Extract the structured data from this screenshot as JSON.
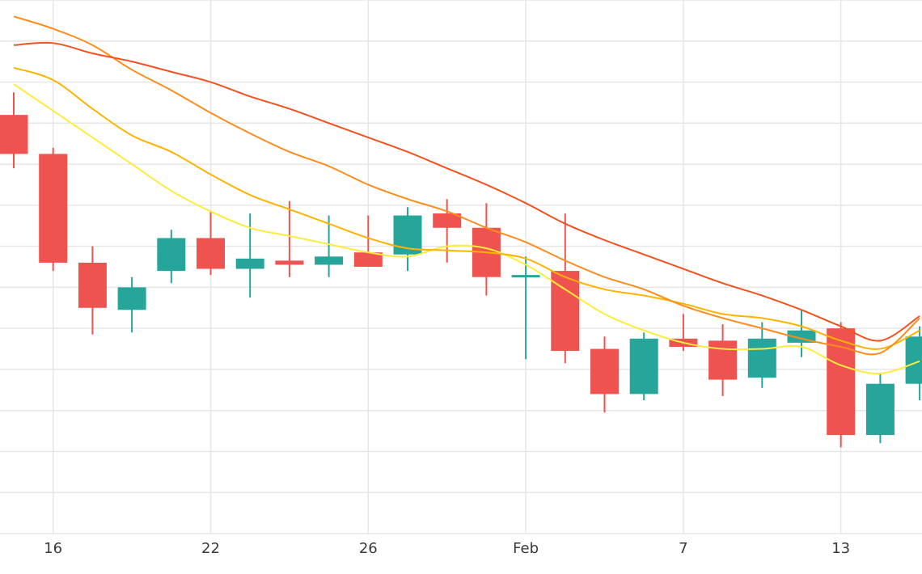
{
  "chart_data": {
    "type": "candlestick",
    "x_axis": {
      "labels": [
        {
          "label": "16",
          "index": 1
        },
        {
          "label": "22",
          "index": 5
        },
        {
          "label": "26",
          "index": 9
        },
        {
          "label": "Feb",
          "index": 13
        },
        {
          "label": "7",
          "index": 17
        },
        {
          "label": "13",
          "index": 21
        }
      ]
    },
    "y_range": [
      0,
      13
    ],
    "grid": true,
    "colors": {
      "up": "#26a69a",
      "down": "#ef5350",
      "ma_colors": [
        "#ffeb3b",
        "#ffb300",
        "#ff8c1a",
        "#f4511e"
      ]
    },
    "candles": [
      {
        "open": 10.2,
        "close": 9.25,
        "high": 10.75,
        "low": 8.9
      },
      {
        "open": 9.25,
        "close": 6.6,
        "high": 9.4,
        "low": 6.4
      },
      {
        "open": 6.6,
        "close": 5.5,
        "high": 7.0,
        "low": 4.85
      },
      {
        "open": 5.45,
        "close": 6.0,
        "high": 6.25,
        "low": 4.9
      },
      {
        "open": 6.4,
        "close": 7.2,
        "high": 7.4,
        "low": 6.1
      },
      {
        "open": 7.2,
        "close": 6.45,
        "high": 7.85,
        "low": 6.3
      },
      {
        "open": 6.45,
        "close": 6.7,
        "high": 7.8,
        "low": 5.75
      },
      {
        "open": 6.65,
        "close": 6.55,
        "high": 8.1,
        "low": 6.25
      },
      {
        "open": 6.55,
        "close": 6.75,
        "high": 7.75,
        "low": 6.25
      },
      {
        "open": 6.85,
        "close": 6.5,
        "high": 7.75,
        "low": 6.5
      },
      {
        "open": 6.8,
        "close": 7.75,
        "high": 7.95,
        "low": 6.4
      },
      {
        "open": 7.8,
        "close": 7.45,
        "high": 8.15,
        "low": 6.6
      },
      {
        "open": 7.45,
        "close": 6.25,
        "high": 8.05,
        "low": 5.8
      },
      {
        "open": 6.25,
        "close": 6.3,
        "high": 6.75,
        "low": 4.25
      },
      {
        "open": 6.4,
        "close": 4.45,
        "high": 7.8,
        "low": 4.15
      },
      {
        "open": 4.5,
        "close": 3.4,
        "high": 4.8,
        "low": 2.95
      },
      {
        "open": 3.4,
        "close": 4.75,
        "high": 4.9,
        "low": 3.25
      },
      {
        "open": 4.75,
        "close": 4.55,
        "high": 5.35,
        "low": 4.45
      },
      {
        "open": 4.7,
        "close": 3.75,
        "high": 5.1,
        "low": 3.35
      },
      {
        "open": 3.8,
        "close": 4.75,
        "high": 5.15,
        "low": 3.55
      },
      {
        "open": 4.65,
        "close": 4.95,
        "high": 5.45,
        "low": 4.3
      },
      {
        "open": 5.0,
        "close": 2.4,
        "high": 5.15,
        "low": 2.1
      },
      {
        "open": 2.4,
        "close": 3.65,
        "high": 3.9,
        "low": 2.2
      },
      {
        "open": 3.65,
        "close": 4.8,
        "high": 5.05,
        "low": 3.25
      }
    ],
    "moving_averages": [
      {
        "values": [
          10.95,
          10.3,
          9.65,
          9.0,
          8.35,
          7.85,
          7.45,
          7.25,
          7.05,
          6.85,
          6.75,
          7.0,
          6.95,
          6.55,
          5.95,
          5.35,
          4.95,
          4.65,
          4.5,
          4.5,
          4.55,
          4.1,
          3.9,
          4.2
        ]
      },
      {
        "values": [
          11.35,
          11.05,
          10.35,
          9.7,
          9.3,
          8.75,
          8.25,
          7.9,
          7.55,
          7.2,
          6.95,
          6.9,
          6.85,
          6.7,
          6.25,
          5.95,
          5.8,
          5.6,
          5.35,
          5.25,
          5.05,
          4.7,
          4.5,
          4.95
        ]
      },
      {
        "values": [
          12.6,
          12.3,
          11.9,
          11.3,
          10.8,
          10.25,
          9.75,
          9.3,
          8.95,
          8.5,
          8.15,
          7.85,
          7.45,
          7.1,
          6.65,
          6.25,
          5.95,
          5.55,
          5.25,
          5.0,
          4.75,
          4.55,
          4.4,
          5.25
        ]
      },
      {
        "values": [
          11.9,
          11.95,
          11.7,
          11.5,
          11.25,
          11.0,
          10.65,
          10.35,
          10.0,
          9.65,
          9.3,
          8.9,
          8.5,
          8.05,
          7.55,
          7.15,
          6.8,
          6.45,
          6.1,
          5.8,
          5.45,
          5.05,
          4.7,
          5.3
        ]
      }
    ]
  }
}
